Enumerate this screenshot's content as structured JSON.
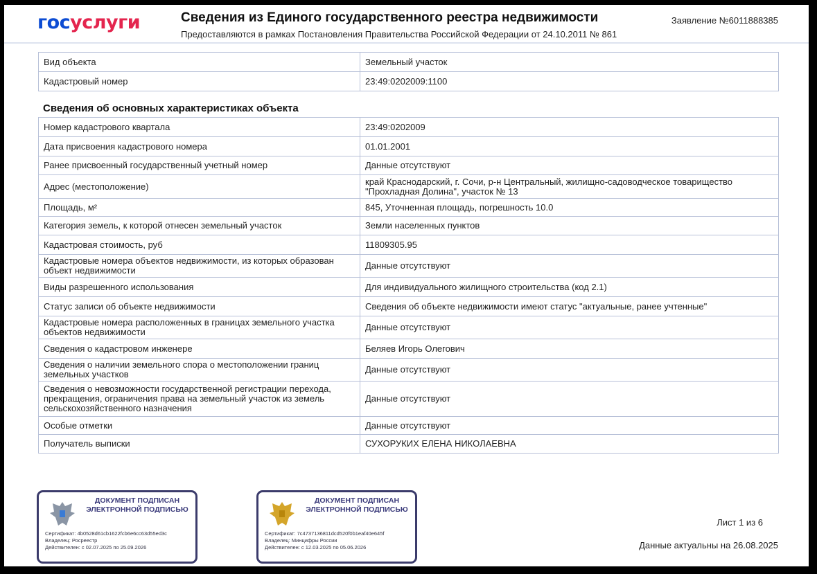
{
  "header": {
    "logo_part1": "гос",
    "logo_part2": "услуги",
    "title": "Сведения из Единого государственного реестра недвижимости",
    "subtitle": "Предоставляются в рамках Постановления Правительства Российской Федерации от 24.10.2011 № 861",
    "application_number": "Заявление №6011888385"
  },
  "object_table": [
    [
      "Вид объекта",
      "Земельный участок"
    ],
    [
      "Кадастровый номер",
      "23:49:0202009:1100"
    ]
  ],
  "section_title": "Сведения об основных характеристиках объекта",
  "characteristics": [
    [
      "Номер кадастрового квартала",
      "23:49:0202009"
    ],
    [
      "Дата присвоения кадастрового номера",
      "01.01.2001"
    ],
    [
      "Ранее присвоенный государственный учетный номер",
      "Данные отсутствуют"
    ],
    [
      "Адрес (местоположение)",
      "край Краснодарский, г. Сочи, р-н Центральный, жилищно-садоводческое товарищество \"Прохладная Долина\", участок № 13"
    ],
    [
      "Площадь, м²",
      "845, Уточненная площадь, погрешность 10.0"
    ],
    [
      "Категория земель, к которой отнесен земельный участок",
      "Земли населенных пунктов"
    ],
    [
      "Кадастровая стоимость, руб",
      "11809305.95"
    ],
    [
      "Кадастровые номера объектов недвижимости, из которых образован объект недвижимости",
      "Данные отсутствуют"
    ],
    [
      "Виды разрешенного использования",
      "Для индивидуального жилищного строительства (код 2.1)"
    ],
    [
      "Статус записи об объекте недвижимости",
      "Сведения об объекте недвижимости имеют статус \"актуальные, ранее учтенные\""
    ],
    [
      "Кадастровые номера расположенных в границах земельного участка объектов недвижимости",
      "Данные отсутствуют"
    ],
    [
      "Сведения о кадастровом инженере",
      "Беляев Игорь Олегович"
    ],
    [
      "Сведения о наличии земельного спора о местоположении границ земельных участков",
      "Данные отсутствуют"
    ],
    [
      "Сведения о невозможности государственной регистрации перехода, прекращения, ограничения права на земельный участок из земель сельскохозяйственного назначения",
      "Данные отсутствуют"
    ],
    [
      "Особые отметки",
      "Данные отсутствуют"
    ],
    [
      "Получатель выписки",
      "СУХОРУКИХ ЕЛЕНА НИКОЛАЕВНА"
    ]
  ],
  "stamps": [
    {
      "title": "ДОКУМЕНТ ПОДПИСАН ЭЛЕКТРОННОЙ ПОДПИСЬЮ",
      "certificate": "Сертификат: 4b0528d61cb1622fcb6e6cc63d55ed3c",
      "owner": "Владелец: Росреестр",
      "valid": "Действителен: с 02.07.2025 по 25.09.2026",
      "emblem": "rosreestr-emblem",
      "emblem_color": "#8a95a5"
    },
    {
      "title": "ДОКУМЕНТ ПОДПИСАН ЭЛЕКТРОННОЙ ПОДПИСЬЮ",
      "certificate": "Сертификат: 7c4737136811dcd520f0b1eaf40e645f",
      "owner": "Владелец: Минцифры России",
      "valid": "Действителен: с 12.03.2025 по 05.06.2026",
      "emblem": "russia-coat-of-arms",
      "emblem_color": "#d4a52a"
    }
  ],
  "footer": {
    "sheet": "Лист 1 из 6",
    "actual_date": "Данные актуальны на 26.08.2025"
  }
}
